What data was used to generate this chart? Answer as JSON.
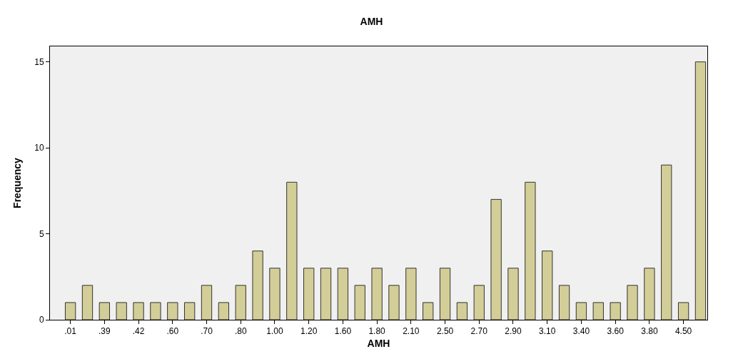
{
  "chart_data": {
    "type": "bar",
    "title": "AMH",
    "xlabel": "AMH",
    "ylabel": "Frequency",
    "categories": [
      ".01",
      null,
      ".39",
      null,
      ".42",
      null,
      ".60",
      null,
      ".70",
      null,
      ".80",
      null,
      "1.00",
      null,
      "1.20",
      null,
      "1.60",
      null,
      "1.80",
      null,
      "2.10",
      null,
      "2.50",
      null,
      "2.70",
      null,
      "2.90",
      null,
      "3.10",
      null,
      "3.40",
      null,
      "3.60",
      null,
      "3.80",
      null,
      "4.50",
      null
    ],
    "values": [
      1,
      2,
      1,
      1,
      1,
      1,
      1,
      1,
      2,
      1,
      2,
      4,
      3,
      8,
      3,
      3,
      3,
      2,
      3,
      2,
      3,
      1,
      3,
      1,
      2,
      7,
      3,
      8,
      4,
      2,
      1,
      1,
      1,
      2,
      3,
      9,
      1,
      15
    ],
    "color": "#d3ce97",
    "ylim": [
      0,
      15.9
    ],
    "yticks": [
      0,
      5,
      10,
      15
    ],
    "grid": false,
    "legend": false
  }
}
